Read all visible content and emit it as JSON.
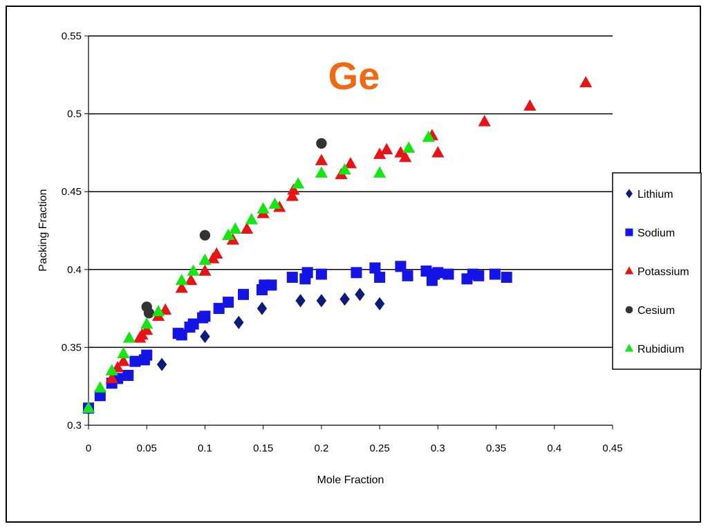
{
  "chart_data": {
    "type": "scatter",
    "title": "Ge",
    "title_color": "#f06a14",
    "xlabel": "Mole Fraction",
    "ylabel": "Packing Fraction",
    "xlim": [
      0,
      0.45
    ],
    "ylim": [
      0.3,
      0.55
    ],
    "x_ticks": [
      "0",
      "0.05",
      "0.1",
      "0.15",
      "0.2",
      "0.25",
      "0.3",
      "0.35",
      "0.4",
      "0.45"
    ],
    "y_ticks": [
      "0.3",
      "0.35",
      "0.4",
      "0.45",
      "0.5",
      "0.55"
    ],
    "grid": "horizontal major lines",
    "legend_position": "right",
    "series": [
      {
        "name": "Lithium",
        "marker": "diamond",
        "color": "#0e1a7a",
        "points": [
          [
            0,
            0.311
          ],
          [
            0.063,
            0.339
          ],
          [
            0.1,
            0.357
          ],
          [
            0.129,
            0.366
          ],
          [
            0.149,
            0.375
          ],
          [
            0.182,
            0.38
          ],
          [
            0.2,
            0.38
          ],
          [
            0.22,
            0.381
          ],
          [
            0.233,
            0.384
          ],
          [
            0.25,
            0.378
          ]
        ]
      },
      {
        "name": "Sodium",
        "marker": "square",
        "color": "#1414e6",
        "points": [
          [
            0,
            0.311
          ],
          [
            0.01,
            0.319
          ],
          [
            0.02,
            0.327
          ],
          [
            0.025,
            0.33
          ],
          [
            0.034,
            0.332
          ],
          [
            0.04,
            0.341
          ],
          [
            0.048,
            0.342
          ],
          [
            0.05,
            0.345
          ],
          [
            0.077,
            0.359
          ],
          [
            0.08,
            0.358
          ],
          [
            0.087,
            0.363
          ],
          [
            0.09,
            0.365
          ],
          [
            0.098,
            0.369
          ],
          [
            0.1,
            0.37
          ],
          [
            0.112,
            0.375
          ],
          [
            0.12,
            0.379
          ],
          [
            0.133,
            0.384
          ],
          [
            0.149,
            0.387
          ],
          [
            0.151,
            0.39
          ],
          [
            0.157,
            0.39
          ],
          [
            0.175,
            0.395
          ],
          [
            0.186,
            0.394
          ],
          [
            0.188,
            0.398
          ],
          [
            0.2,
            0.397
          ],
          [
            0.23,
            0.398
          ],
          [
            0.246,
            0.401
          ],
          [
            0.25,
            0.395
          ],
          [
            0.268,
            0.402
          ],
          [
            0.274,
            0.396
          ],
          [
            0.29,
            0.399
          ],
          [
            0.295,
            0.393
          ],
          [
            0.297,
            0.397
          ],
          [
            0.3,
            0.398
          ],
          [
            0.309,
            0.397
          ],
          [
            0.325,
            0.394
          ],
          [
            0.33,
            0.397
          ],
          [
            0.335,
            0.396
          ],
          [
            0.349,
            0.397
          ],
          [
            0.359,
            0.395
          ]
        ]
      },
      {
        "name": "Potassium",
        "marker": "triangle",
        "color": "#e61414",
        "points": [
          [
            0,
            0.311
          ],
          [
            0.02,
            0.33
          ],
          [
            0.025,
            0.337
          ],
          [
            0.03,
            0.341
          ],
          [
            0.044,
            0.356
          ],
          [
            0.046,
            0.358
          ],
          [
            0.05,
            0.361
          ],
          [
            0.06,
            0.37
          ],
          [
            0.066,
            0.374
          ],
          [
            0.08,
            0.388
          ],
          [
            0.088,
            0.393
          ],
          [
            0.1,
            0.399
          ],
          [
            0.107,
            0.407
          ],
          [
            0.11,
            0.41
          ],
          [
            0.124,
            0.419
          ],
          [
            0.136,
            0.426
          ],
          [
            0.15,
            0.436
          ],
          [
            0.164,
            0.44
          ],
          [
            0.175,
            0.447
          ],
          [
            0.176,
            0.451
          ],
          [
            0.2,
            0.47
          ],
          [
            0.217,
            0.461
          ],
          [
            0.225,
            0.468
          ],
          [
            0.25,
            0.474
          ],
          [
            0.256,
            0.477
          ],
          [
            0.268,
            0.475
          ],
          [
            0.272,
            0.472
          ],
          [
            0.295,
            0.486
          ],
          [
            0.3,
            0.475
          ],
          [
            0.34,
            0.495
          ],
          [
            0.379,
            0.505
          ],
          [
            0.427,
            0.52
          ]
        ]
      },
      {
        "name": "Cesium",
        "marker": "circle",
        "color": "#333333",
        "points": [
          [
            0.05,
            0.376
          ],
          [
            0.052,
            0.372
          ],
          [
            0.1,
            0.422
          ],
          [
            0.2,
            0.481
          ]
        ]
      },
      {
        "name": "Rubidium",
        "marker": "triangle",
        "color": "#14e614",
        "points": [
          [
            0,
            0.311
          ],
          [
            0.01,
            0.324
          ],
          [
            0.02,
            0.335
          ],
          [
            0.03,
            0.346
          ],
          [
            0.035,
            0.356
          ],
          [
            0.05,
            0.365
          ],
          [
            0.06,
            0.373
          ],
          [
            0.08,
            0.393
          ],
          [
            0.09,
            0.399
          ],
          [
            0.1,
            0.406
          ],
          [
            0.12,
            0.422
          ],
          [
            0.126,
            0.426
          ],
          [
            0.14,
            0.432
          ],
          [
            0.15,
            0.439
          ],
          [
            0.16,
            0.442
          ],
          [
            0.18,
            0.455
          ],
          [
            0.2,
            0.462
          ],
          [
            0.22,
            0.464
          ],
          [
            0.25,
            0.462
          ],
          [
            0.275,
            0.478
          ],
          [
            0.292,
            0.485
          ]
        ]
      }
    ]
  }
}
